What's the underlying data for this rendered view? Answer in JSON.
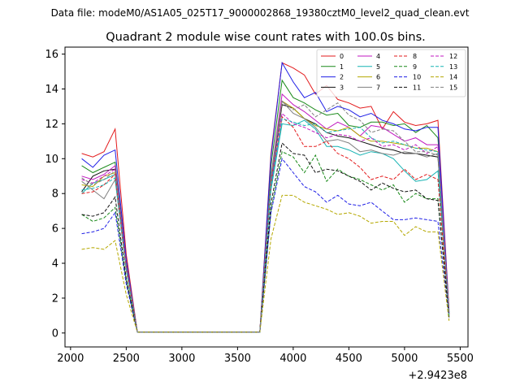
{
  "figure": {
    "suptitle": "Data file: modeM0/AS1A05_025T17_9000002868_19380cztM0_level2_quad_clean.evt"
  },
  "chart_data": {
    "type": "line",
    "title": "Quadrant 2 module wise count rates with 100.0s bins.",
    "xlabel": "",
    "ylabel": "",
    "x_offset_label": "+2.9423e8",
    "xlim": [
      1950,
      5570
    ],
    "ylim": [
      -0.8,
      16.4
    ],
    "x_ticks": [
      2000,
      2500,
      3000,
      3500,
      4000,
      4500,
      5000,
      5500
    ],
    "y_ticks": [
      0,
      2,
      4,
      6,
      8,
      10,
      12,
      14,
      16
    ],
    "grid": false,
    "legend_position": "top-right",
    "legend_columns": 4,
    "x": [
      2100,
      2200,
      2300,
      2400,
      2500,
      2600,
      2700,
      2800,
      2900,
      3000,
      3100,
      3200,
      3300,
      3400,
      3500,
      3600,
      3700,
      3800,
      3900,
      4000,
      4100,
      4200,
      4300,
      4400,
      4500,
      4600,
      4700,
      4800,
      4900,
      5000,
      5100,
      5200,
      5300,
      5400
    ],
    "series": [
      {
        "name": "0",
        "color": "#e31a1c",
        "dash": false,
        "values": [
          10.3,
          10.1,
          10.4,
          11.7,
          4.5,
          0.05,
          0.05,
          0.05,
          0.05,
          0.05,
          0.05,
          0.05,
          0.05,
          0.05,
          0.05,
          0.05,
          0.05,
          10.3,
          15.5,
          15.2,
          14.8,
          13.7,
          14.2,
          13.4,
          13.2,
          12.9,
          13.0,
          11.7,
          12.7,
          12.1,
          11.9,
          12.0,
          12.2,
          1.3
        ]
      },
      {
        "name": "1",
        "color": "#1a8a1a",
        "dash": false,
        "values": [
          9.6,
          9.2,
          9.5,
          9.8,
          4.0,
          0.05,
          0.05,
          0.05,
          0.05,
          0.05,
          0.05,
          0.05,
          0.05,
          0.05,
          0.05,
          0.05,
          0.05,
          9.6,
          14.5,
          13.5,
          13.2,
          12.8,
          12.5,
          12.6,
          11.9,
          11.8,
          12.1,
          12.1,
          11.9,
          12.0,
          11.5,
          11.9,
          11.2,
          1.2
        ]
      },
      {
        "name": "2",
        "color": "#1f1fe6",
        "dash": false,
        "values": [
          10.0,
          9.5,
          10.2,
          10.5,
          4.2,
          0.05,
          0.05,
          0.05,
          0.05,
          0.05,
          0.05,
          0.05,
          0.05,
          0.05,
          0.05,
          0.05,
          0.05,
          10.1,
          15.5,
          14.4,
          13.5,
          13.8,
          12.7,
          13.0,
          12.8,
          12.4,
          12.6,
          12.2,
          12.0,
          11.7,
          11.6,
          11.8,
          11.8,
          1.2
        ]
      },
      {
        "name": "3",
        "color": "#111111",
        "dash": false,
        "values": [
          8.1,
          9.0,
          9.3,
          9.4,
          3.8,
          0.05,
          0.05,
          0.05,
          0.05,
          0.05,
          0.05,
          0.05,
          0.05,
          0.05,
          0.05,
          0.05,
          0.05,
          8.7,
          13.1,
          12.9,
          12.3,
          12.0,
          11.5,
          11.3,
          11.2,
          11.0,
          10.8,
          10.6,
          10.5,
          10.3,
          10.3,
          10.2,
          10.1,
          1.1
        ]
      },
      {
        "name": "4",
        "color": "#c017c0",
        "dash": false,
        "values": [
          9.0,
          8.8,
          9.1,
          9.6,
          3.9,
          0.05,
          0.05,
          0.05,
          0.05,
          0.05,
          0.05,
          0.05,
          0.05,
          0.05,
          0.05,
          0.05,
          0.05,
          9.0,
          13.7,
          13.1,
          12.7,
          12.2,
          11.7,
          12.1,
          11.8,
          11.3,
          11.9,
          11.8,
          11.4,
          11.0,
          11.2,
          10.8,
          10.8,
          1.1
        ]
      },
      {
        "name": "5",
        "color": "#17b3b3",
        "dash": false,
        "values": [
          8.0,
          8.6,
          8.8,
          9.1,
          3.7,
          0.05,
          0.05,
          0.05,
          0.05,
          0.05,
          0.05,
          0.05,
          0.05,
          0.05,
          0.05,
          0.05,
          0.05,
          8.2,
          12.0,
          11.9,
          12.2,
          11.7,
          10.7,
          10.7,
          10.5,
          10.2,
          10.4,
          10.3,
          10.0,
          9.3,
          8.7,
          8.8,
          9.3,
          1.0
        ]
      },
      {
        "name": "6",
        "color": "#b5a800",
        "dash": false,
        "values": [
          8.5,
          8.4,
          9.0,
          9.2,
          3.8,
          0.05,
          0.05,
          0.05,
          0.05,
          0.05,
          0.05,
          0.05,
          0.05,
          0.05,
          0.05,
          0.05,
          0.05,
          8.9,
          13.3,
          12.9,
          12.3,
          11.9,
          11.7,
          11.6,
          11.8,
          11.3,
          11.0,
          11.0,
          10.9,
          10.8,
          10.6,
          10.6,
          10.4,
          1.0
        ]
      },
      {
        "name": "7",
        "color": "#808080",
        "dash": false,
        "values": [
          8.7,
          8.2,
          7.7,
          8.8,
          3.6,
          0.05,
          0.05,
          0.05,
          0.05,
          0.05,
          0.05,
          0.05,
          0.05,
          0.05,
          0.05,
          0.05,
          0.05,
          8.8,
          13.3,
          12.6,
          12.3,
          11.8,
          11.0,
          11.1,
          10.9,
          10.4,
          10.5,
          10.3,
          10.2,
          10.4,
          10.3,
          10.1,
          10.3,
          1.0
        ]
      },
      {
        "name": "8",
        "color": "#e31a1c",
        "dash": true,
        "values": [
          8.0,
          8.1,
          8.5,
          9.1,
          3.7,
          0.05,
          0.05,
          0.05,
          0.05,
          0.05,
          0.05,
          0.05,
          0.05,
          0.05,
          0.05,
          0.05,
          0.05,
          8.5,
          12.4,
          11.8,
          10.7,
          10.7,
          11.0,
          10.3,
          10.0,
          9.5,
          8.8,
          9.0,
          8.8,
          9.4,
          8.8,
          9.1,
          8.8,
          1.0
        ]
      },
      {
        "name": "9",
        "color": "#1a8a1a",
        "dash": true,
        "values": [
          6.8,
          6.4,
          6.6,
          7.2,
          3.0,
          0.05,
          0.05,
          0.05,
          0.05,
          0.05,
          0.05,
          0.05,
          0.05,
          0.05,
          0.05,
          0.05,
          0.05,
          7.0,
          10.4,
          10.1,
          9.2,
          10.2,
          8.7,
          9.4,
          9.0,
          8.8,
          8.5,
          8.2,
          8.5,
          7.5,
          8.0,
          7.7,
          7.7,
          0.9
        ]
      },
      {
        "name": "10",
        "color": "#1f1fe6",
        "dash": true,
        "values": [
          5.7,
          5.8,
          6.0,
          6.9,
          2.8,
          0.05,
          0.05,
          0.05,
          0.05,
          0.05,
          0.05,
          0.05,
          0.05,
          0.05,
          0.05,
          0.05,
          0.05,
          6.9,
          10.0,
          9.2,
          8.4,
          8.1,
          7.5,
          7.9,
          7.4,
          7.3,
          7.5,
          7.0,
          6.5,
          6.5,
          6.6,
          6.5,
          6.4,
          0.8
        ]
      },
      {
        "name": "11",
        "color": "#111111",
        "dash": true,
        "values": [
          6.8,
          6.7,
          6.9,
          7.8,
          3.1,
          0.05,
          0.05,
          0.05,
          0.05,
          0.05,
          0.05,
          0.05,
          0.05,
          0.05,
          0.05,
          0.05,
          0.05,
          7.4,
          10.9,
          10.3,
          10.2,
          9.2,
          9.4,
          9.3,
          9.0,
          8.7,
          8.2,
          8.6,
          8.3,
          8.1,
          8.2,
          7.7,
          7.6,
          0.9
        ]
      },
      {
        "name": "12",
        "color": "#c017c0",
        "dash": true,
        "values": [
          8.8,
          8.6,
          9.0,
          9.4,
          3.8,
          0.05,
          0.05,
          0.05,
          0.05,
          0.05,
          0.05,
          0.05,
          0.05,
          0.05,
          0.05,
          0.05,
          0.05,
          8.6,
          12.6,
          12.0,
          11.8,
          11.5,
          11.2,
          11.4,
          11.3,
          11.0,
          11.2,
          10.7,
          10.8,
          10.5,
          10.8,
          10.3,
          10.7,
          1.1
        ]
      },
      {
        "name": "13",
        "color": "#17b3b3",
        "dash": true,
        "values": [
          8.2,
          8.3,
          8.5,
          8.9,
          3.6,
          0.05,
          0.05,
          0.05,
          0.05,
          0.05,
          0.05,
          0.05,
          0.05,
          0.05,
          0.05,
          0.05,
          0.05,
          8.4,
          12.3,
          12.1,
          11.9,
          12.0,
          11.5,
          11.6,
          11.7,
          11.8,
          11.2,
          10.9,
          11.0,
          10.8,
          10.6,
          10.5,
          10.4,
          1.0
        ]
      },
      {
        "name": "14",
        "color": "#b5a800",
        "dash": true,
        "values": [
          4.8,
          4.9,
          4.8,
          5.3,
          2.2,
          0.05,
          0.05,
          0.05,
          0.05,
          0.05,
          0.05,
          0.05,
          0.05,
          0.05,
          0.05,
          0.05,
          0.05,
          5.4,
          7.9,
          7.9,
          7.5,
          7.3,
          7.1,
          6.8,
          6.9,
          6.7,
          6.3,
          6.4,
          6.4,
          5.6,
          6.1,
          5.8,
          5.8,
          0.7
        ]
      },
      {
        "name": "15",
        "color": "#808080",
        "dash": true,
        "values": [
          8.9,
          8.5,
          8.8,
          9.3,
          3.8,
          0.05,
          0.05,
          0.05,
          0.05,
          0.05,
          0.05,
          0.05,
          0.05,
          0.05,
          0.05,
          0.05,
          0.05,
          9.0,
          13.3,
          12.8,
          13.1,
          12.4,
          12.8,
          13.2,
          12.5,
          12.2,
          11.5,
          11.7,
          11.6,
          11.0,
          10.4,
          10.4,
          10.2,
          1.1
        ]
      }
    ]
  }
}
